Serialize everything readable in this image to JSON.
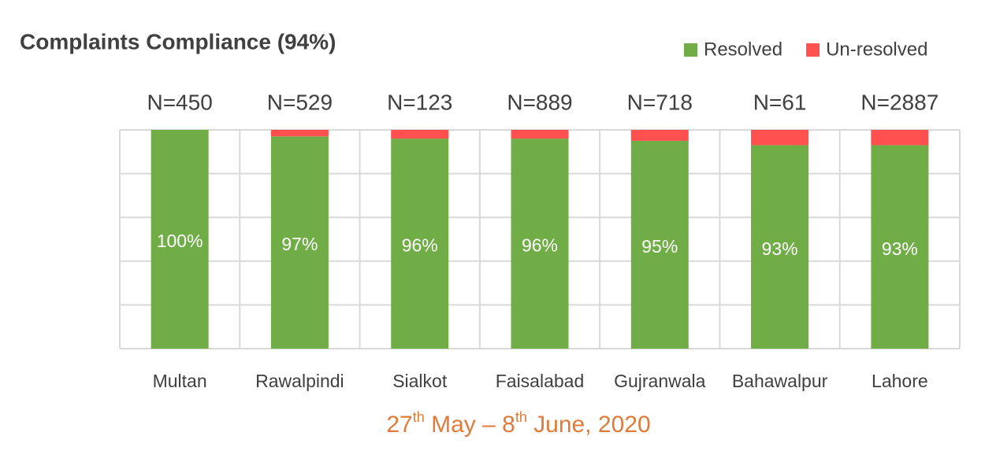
{
  "chart_data": {
    "type": "stacked_bar",
    "title": "Complaints Compliance (94%)",
    "footer": [
      "27",
      "th",
      " May – 8",
      "th",
      " June, 2020"
    ],
    "categories": [
      "Multan",
      "Rawalpindi",
      "Sialkot",
      "Faisalabad",
      "Gujranwala",
      "Bahawalpur",
      "Lahore"
    ],
    "annotations": [
      "N=450",
      "N=529",
      "N=123",
      "N=889",
      "N=718",
      "N=61",
      "N=2887"
    ],
    "series": [
      {
        "name": "Resolved",
        "color": "#70ad47",
        "values": [
          100,
          97,
          96,
          96,
          95,
          93,
          93
        ],
        "value_labels": [
          "100%",
          "97%",
          "96%",
          "96%",
          "95%",
          "93%",
          "93%"
        ]
      },
      {
        "name": "Un-resolved",
        "color": "#ff5050",
        "values": [
          0,
          3,
          4,
          4,
          5,
          7,
          7
        ]
      }
    ],
    "ylim": [
      0,
      100
    ],
    "yticks": [
      0,
      20,
      40,
      60,
      80,
      100
    ],
    "grid": true,
    "legend": "top-right"
  }
}
